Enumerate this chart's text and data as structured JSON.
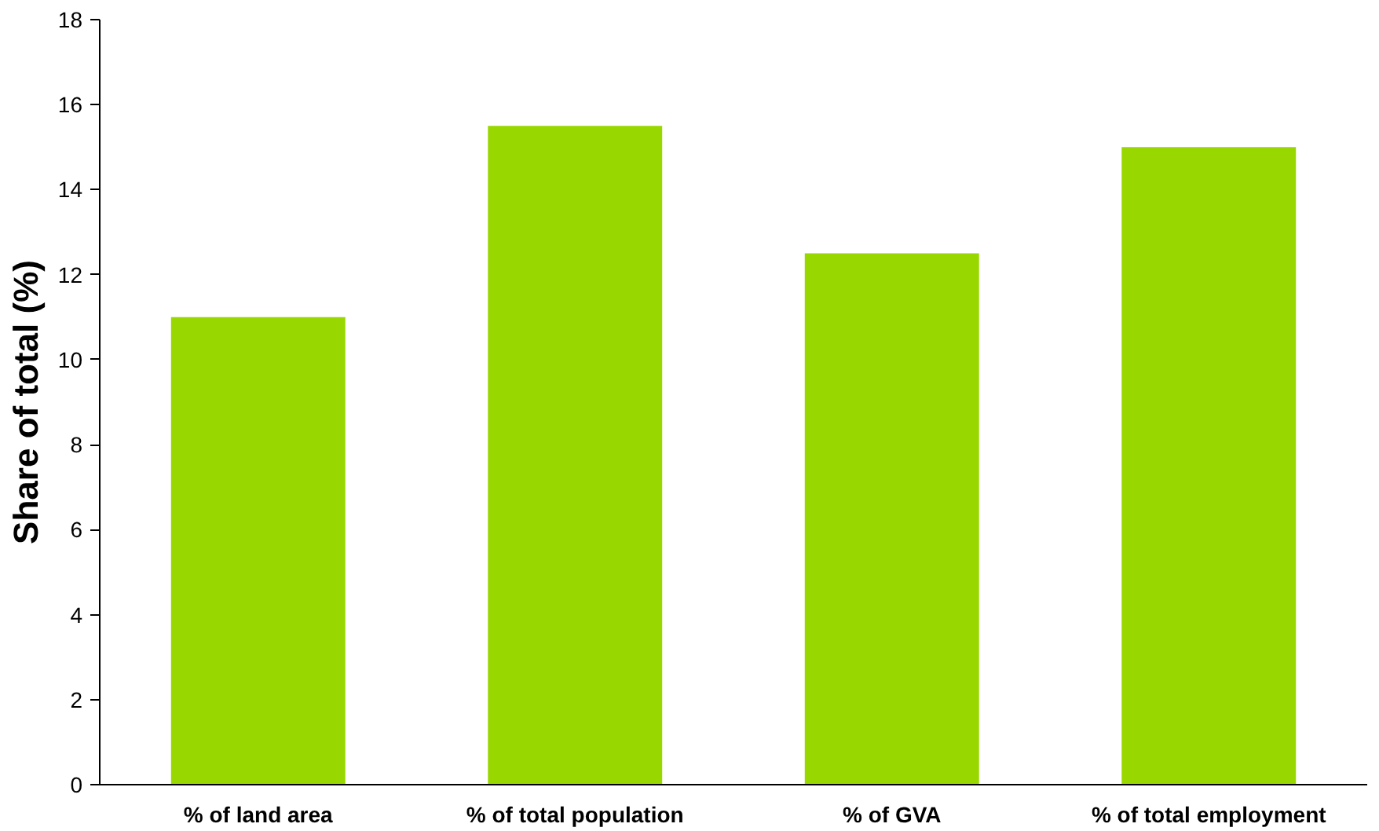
{
  "chart_data": {
    "type": "bar",
    "ylabel": "Share of total (%)",
    "categories": [
      "% of land area",
      "% of total population",
      "% of GVA",
      "% of total employment"
    ],
    "values": [
      11.0,
      15.5,
      12.5,
      15.0
    ],
    "color": "#99d700",
    "ylim": [
      0,
      18
    ],
    "yticks": [
      0,
      2,
      4,
      6,
      8,
      10,
      12,
      14,
      16,
      18
    ],
    "grid": false
  }
}
